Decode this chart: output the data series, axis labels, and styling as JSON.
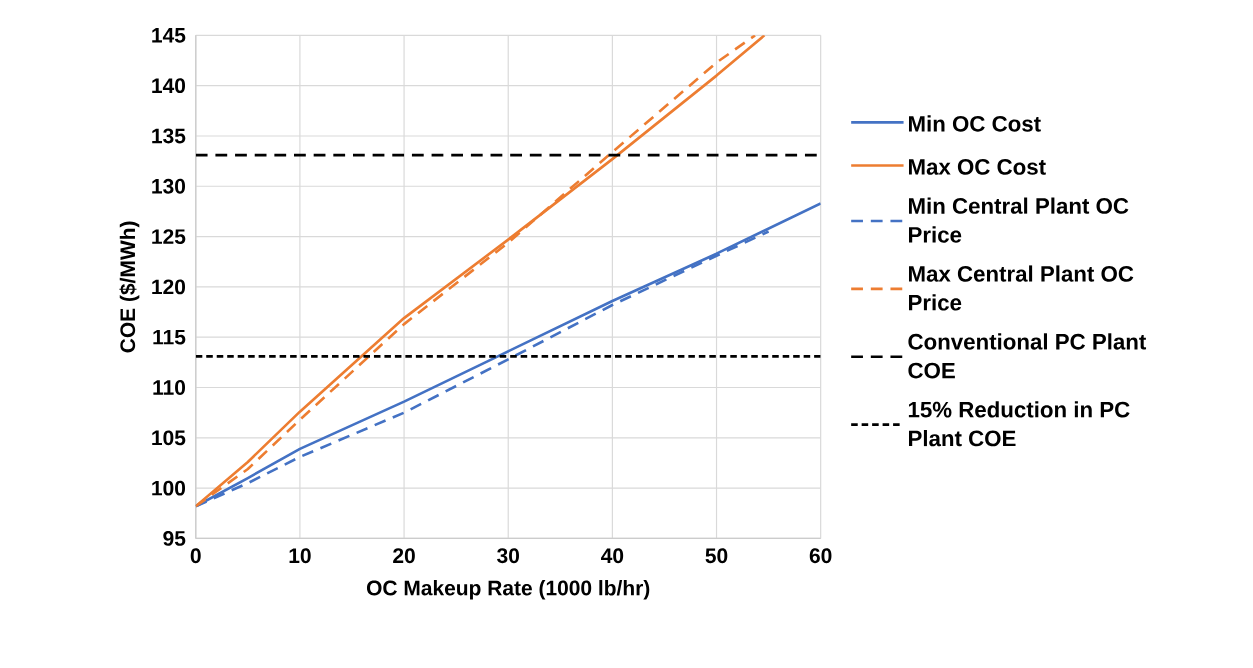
{
  "chart_data": {
    "type": "line",
    "xlabel": "OC Makeup Rate (1000 lb/hr)",
    "ylabel": "COE ($/MWh)",
    "xlim": [
      0,
      60
    ],
    "ylim": [
      95,
      145
    ],
    "xticks": [
      0,
      10,
      20,
      30,
      40,
      50,
      60
    ],
    "yticks": [
      95,
      100,
      105,
      110,
      115,
      120,
      125,
      130,
      135,
      140,
      145
    ],
    "grid": true,
    "legend": "right",
    "marker": "none",
    "series": [
      {
        "name": "Min OC Cost",
        "color": "#4472c4",
        "line_style": "solid",
        "x": [
          0,
          5,
          10,
          20,
          29,
          40,
          50,
          60
        ],
        "values": [
          98.2,
          101.0,
          103.9,
          108.6,
          113.1,
          118.6,
          123.3,
          128.3
        ]
      },
      {
        "name": "Max OC Cost",
        "color": "#ed7d31",
        "line_style": "solid",
        "x": [
          0,
          5,
          10,
          20,
          30,
          40,
          50,
          54.6
        ],
        "values": [
          98.2,
          102.6,
          107.6,
          116.9,
          124.7,
          132.7,
          141.0,
          145
        ]
      },
      {
        "name": "Min Central Plant OC Price",
        "color": "#4472c4",
        "line_style": "dashed",
        "x": [
          0,
          5,
          10,
          20,
          30,
          40,
          50,
          55
        ],
        "values": [
          98.2,
          100.5,
          103.1,
          107.5,
          112.8,
          118.2,
          123.1,
          125.5
        ]
      },
      {
        "name": "Max Central Plant OC Price",
        "color": "#ed7d31",
        "line_style": "dashed",
        "x": [
          0,
          5,
          10,
          20,
          30,
          40,
          50,
          53.7
        ],
        "values": [
          98.2,
          101.9,
          106.8,
          116.3,
          124.4,
          133.4,
          142.3,
          145
        ]
      }
    ],
    "ref_lines": [
      {
        "axis": "y",
        "value": 133.1,
        "label": "Conventional PC Plant COE",
        "color": "#000000",
        "line_style": "dashed"
      },
      {
        "axis": "y",
        "value": 113.1,
        "label": "15% Reduction in PC Plant COE",
        "color": "#000000",
        "line_style": "dotted"
      }
    ]
  }
}
